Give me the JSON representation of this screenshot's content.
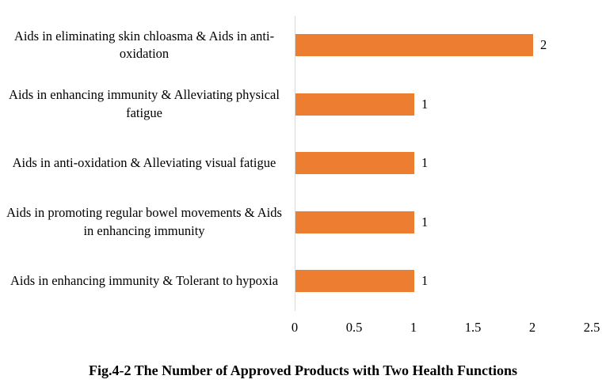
{
  "figure_caption": "Fig.4-2 The Number of Approved Products with Two Health Functions",
  "chart_data": {
    "type": "bar",
    "orientation": "horizontal",
    "title": "Fig.4-2 The Number of Approved Products with Two Health Functions",
    "categories": [
      "Aids in eliminating skin chloasma & Aids in anti-oxidation",
      "Aids in enhancing immunity & Alleviating physical fatigue",
      "Aids in anti-oxidation & Alleviating visual fatigue",
      "Aids in promoting regular bowel movements & Aids in enhancing immunity",
      "Aids in enhancing immunity & Tolerant to hypoxia"
    ],
    "values": [
      2,
      1,
      1,
      1,
      1
    ],
    "data_labels": [
      "2",
      "1",
      "1",
      "1",
      "1"
    ],
    "xlim": [
      0,
      2.5
    ],
    "x_ticks": [
      0,
      0.5,
      1,
      1.5,
      2,
      2.5
    ],
    "x_tick_labels": [
      "0",
      "0.5",
      "1",
      "1.5",
      "2",
      "2.5"
    ],
    "grid": false,
    "legend": "none",
    "bar_color": "#ED7D31",
    "axis_line_color": "#D9D9D9",
    "text_color": "#000000"
  }
}
